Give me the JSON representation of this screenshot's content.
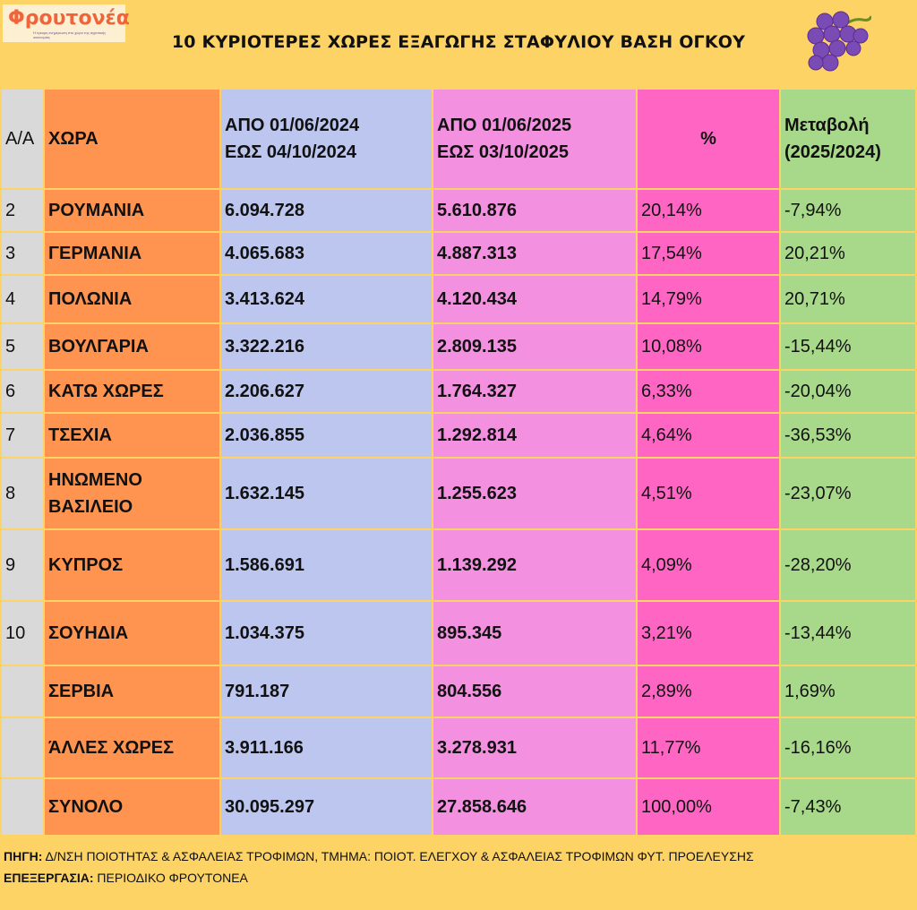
{
  "logo": {
    "name": "Φρουτονέα",
    "tagline": "Η έγκυρη ενημέρωση στο χώρο της αγροτικής οικονομίας"
  },
  "title": "10 ΚΥΡΙΟΤΕΡΕΣ ΧΩΡΕΣ ΕΞΑΓΩΓΗΣ ΣΤΑΦΥΛΙΟΥ ΒΑΣΗ ΟΓΚΟΥ",
  "colors": {
    "background": "#fdd366",
    "aa": "#d9d9d9",
    "country": "#fe944f",
    "y2024": "#bcc6ef",
    "y2025": "#f390e0",
    "pct": "#ff66c4",
    "change": "#a8d88a"
  },
  "table": {
    "headers": {
      "aa": "Α/Α",
      "country": "ΧΩΡΑ",
      "y2024_l1": "ΑΠΟ 01/06/2024",
      "y2024_l2": "ΕΩΣ  04/10/2024",
      "y2025_l1": "ΑΠΟ 01/06/2025",
      "y2025_l2": "ΕΩΣ  03/10/2025",
      "pct": "%",
      "change_l1": "Μεταβολή",
      "change_l2": "(2025/2024)"
    },
    "rows": [
      {
        "aa": "2",
        "country": "ΡΟΥΜΑΝΙΑ",
        "y2024": "6.094.728",
        "y2025": "5.610.876",
        "pct": "20,14%",
        "change": "-7,94%"
      },
      {
        "aa": "3",
        "country": "ΓΕΡΜΑΝΙΑ",
        "y2024": "4.065.683",
        "y2025": "4.887.313",
        "pct": "17,54%",
        "change": "20,21%"
      },
      {
        "aa": "4",
        "country": "ΠΟΛΩΝΙΑ",
        "y2024": "3.413.624",
        "y2025": "4.120.434",
        "pct": "14,79%",
        "change": "20,71%"
      },
      {
        "aa": "5",
        "country": "ΒΟΥΛΓΑΡΙΑ",
        "y2024": "3.322.216",
        "y2025": "2.809.135",
        "pct": "10,08%",
        "change": "-15,44%"
      },
      {
        "aa": "6",
        "country": "ΚΑΤΩ ΧΩΡΕΣ",
        "y2024": "2.206.627",
        "y2025": "1.764.327",
        "pct": "6,33%",
        "change": "-20,04%"
      },
      {
        "aa": "7",
        "country": "ΤΣΕΧΙΑ",
        "y2024": "2.036.855",
        "y2025": "1.292.814",
        "pct": "4,64%",
        "change": "-36,53%"
      },
      {
        "aa": "8",
        "country": "ΗΝΩΜΕΝΟ ΒΑΣΙΛΕΙΟ",
        "y2024": "1.632.145",
        "y2025": "1.255.623",
        "pct": "4,51%",
        "change": "-23,07%"
      },
      {
        "aa": "9",
        "country": "ΚΥΠΡΟΣ",
        "y2024": "1.586.691",
        "y2025": "1.139.292",
        "pct": "4,09%",
        "change": "-28,20%"
      },
      {
        "aa": "10",
        "country": "ΣΟΥΗΔΙΑ",
        "y2024": "1.034.375",
        "y2025": "895.345",
        "pct": "3,21%",
        "change": "-13,44%"
      },
      {
        "aa": "",
        "country": "ΣΕΡΒΙΑ",
        "y2024": "791.187",
        "y2025": "804.556",
        "pct": "2,89%",
        "change": "1,69%"
      },
      {
        "aa": "",
        "country": "ΆΛΛΕΣ ΧΩΡΕΣ",
        "y2024": "3.911.166",
        "y2025": "3.278.931",
        "pct": "11,77%",
        "change": "-16,16%"
      },
      {
        "aa": "",
        "country": "ΣΥΝΟΛΟ",
        "y2024": "30.095.297",
        "y2025": "27.858.646",
        "pct": "100,00%",
        "change": "-7,43%"
      }
    ]
  },
  "footer": {
    "source_label": "ΠΗΓΗ:",
    "source": " Δ/ΝΣΗ ΠΟΙΟΤΗΤΑΣ & ΑΣΦΑΛΕΙΑΣ ΤΡΟΦΙΜΩΝ, ΤΜΗΜΑ: ΠΟΙΟΤ. ΕΛΕΓΧΟΥ & ΑΣΦΑΛΕΙΑΣ ΤΡΟΦΙΜΩΝ ΦΥΤ. ΠΡΟΕΛΕΥΣΗΣ",
    "processing_label": "ΕΠΕΞΕΡΓΑΣΙΑ:",
    "processing": " ΠΕΡΙΟΔΙΚΟ ΦΡΟΥΤΟΝΕΑ"
  }
}
